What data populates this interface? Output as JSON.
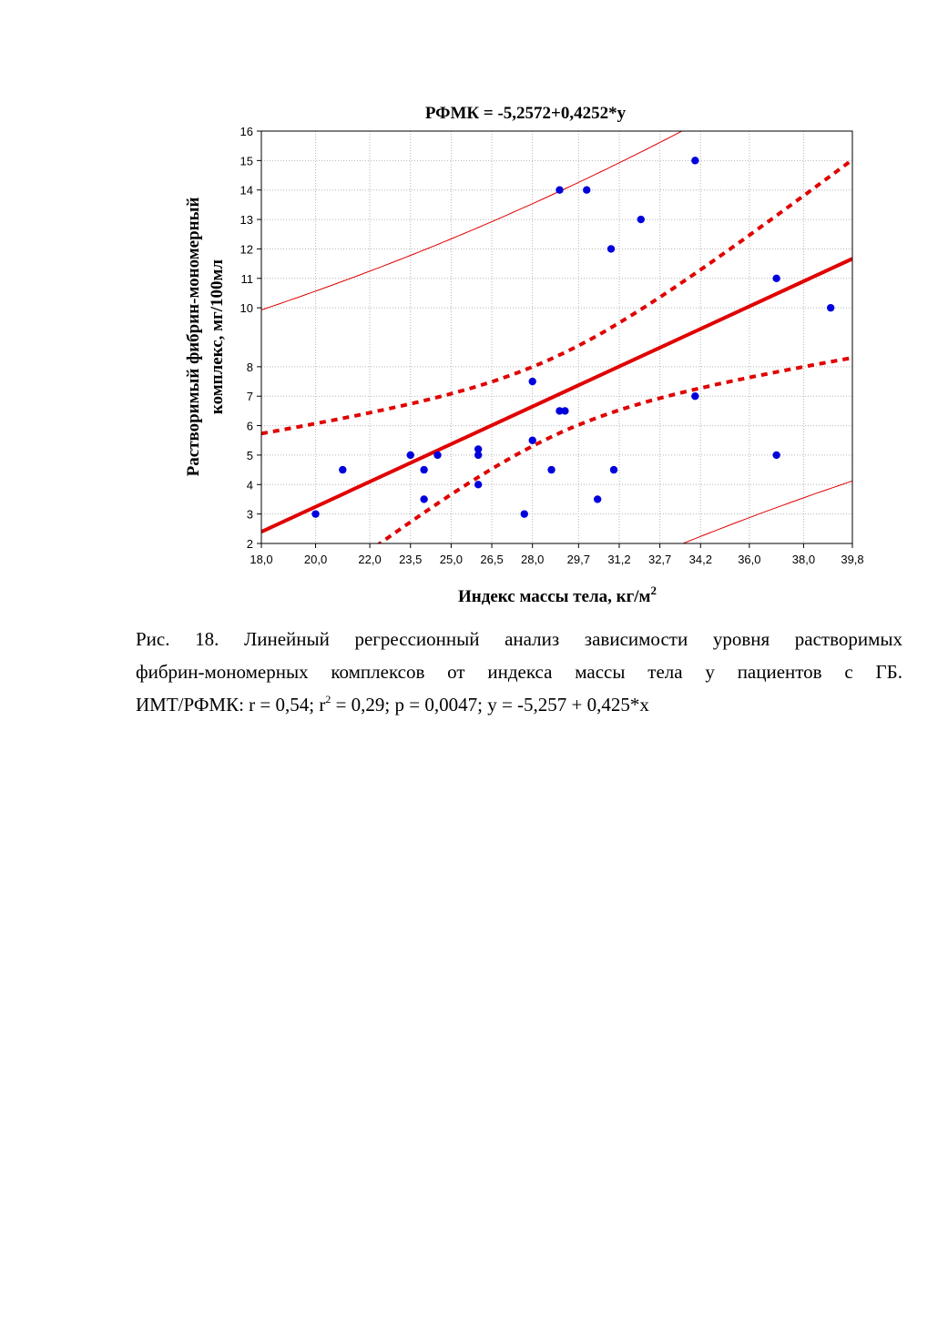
{
  "chart_data": {
    "type": "scatter",
    "title": "РФМК = -5,2572+0,4252*у",
    "xlabel": "Индекс массы тела, кг/м",
    "xlabel_sup": "2",
    "ylabel_line1": "Растворимый фибрин-мономерный",
    "ylabel_line2": "комплекс, мг/100мл",
    "x_ticks": [
      18.0,
      20.0,
      22.0,
      23.5,
      25.0,
      26.5,
      28.0,
      29.7,
      31.2,
      32.7,
      34.2,
      36.0,
      38.0,
      39.8
    ],
    "x_tick_labels": [
      "18,0",
      "20,0",
      "22,0",
      "23,5",
      "25,0",
      "26,5",
      "28,0",
      "29,7",
      "31,2",
      "32,7",
      "34,2",
      "36,0",
      "38,0",
      "39,8"
    ],
    "y_ticks": [
      2,
      3,
      4,
      5,
      6,
      7,
      8,
      10,
      11,
      12,
      13,
      14,
      15,
      16
    ],
    "y_tick_labels": [
      "2",
      "3",
      "4",
      "5",
      "6",
      "7",
      "8",
      "10",
      "11",
      "12",
      "13",
      "14",
      "15",
      "16"
    ],
    "xlim": [
      18.0,
      39.8
    ],
    "ylim": [
      2,
      16
    ],
    "grid": true,
    "points": [
      {
        "x": 20.0,
        "y": 3.0
      },
      {
        "x": 21.0,
        "y": 4.5
      },
      {
        "x": 23.5,
        "y": 5.0
      },
      {
        "x": 24.0,
        "y": 4.5
      },
      {
        "x": 24.0,
        "y": 3.5
      },
      {
        "x": 24.5,
        "y": 5.0
      },
      {
        "x": 26.0,
        "y": 5.2
      },
      {
        "x": 26.0,
        "y": 5.0
      },
      {
        "x": 26.0,
        "y": 4.0
      },
      {
        "x": 27.7,
        "y": 3.0
      },
      {
        "x": 28.0,
        "y": 7.5
      },
      {
        "x": 28.0,
        "y": 5.5
      },
      {
        "x": 28.7,
        "y": 4.5
      },
      {
        "x": 29.0,
        "y": 14.0
      },
      {
        "x": 29.0,
        "y": 6.5
      },
      {
        "x": 29.2,
        "y": 6.5
      },
      {
        "x": 30.0,
        "y": 14.0
      },
      {
        "x": 30.4,
        "y": 3.5
      },
      {
        "x": 30.9,
        "y": 12.0
      },
      {
        "x": 31.0,
        "y": 4.5
      },
      {
        "x": 32.0,
        "y": 13.0
      },
      {
        "x": 34.0,
        "y": 15.0
      },
      {
        "x": 34.0,
        "y": 7.0
      },
      {
        "x": 37.0,
        "y": 11.0
      },
      {
        "x": 37.0,
        "y": 5.0
      },
      {
        "x": 39.0,
        "y": 10.0
      }
    ],
    "regression": {
      "intercept": -5.2572,
      "slope": 0.4252
    },
    "colors": {
      "points": "#0000dd",
      "regression": "#e00000",
      "grid": "#b4b4b4"
    }
  },
  "caption": {
    "line1": "Рис. 18. Линейный регрессионный анализ зависимости уровня растворимых",
    "line2": "фибрин-мономерных комплексов от  индекса массы тела у пациентов с ГБ.",
    "line3_a": "ИМТ/РФМК: r = 0,54; r",
    "line3_sup": "2",
    "line3_b": " = 0,29; p = 0,0047; y = -5,257 + 0,425*x"
  }
}
